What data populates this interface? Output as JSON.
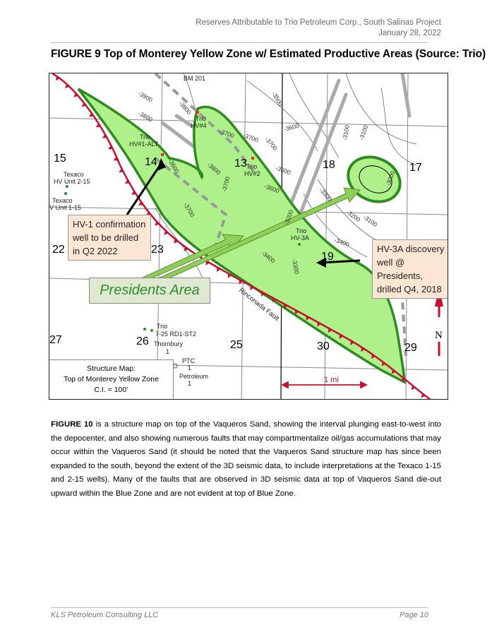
{
  "header": {
    "line1": "Reserves Attributable to Trio Petroleum Corp., South Salinas Project",
    "line2": "January 28, 2022"
  },
  "figure": {
    "title": "FIGURE 9 Top of Monterey Yellow Zone w/ Estimated Productive Areas (Source: Trio)",
    "sections": [
      "15",
      "14",
      "13",
      "18",
      "17",
      "22",
      "23",
      "19",
      "27",
      "26",
      "25",
      "30",
      "29"
    ],
    "wells": {
      "bm201": "BM 201",
      "hv4_a": "Trio",
      "hv4_b": "HV#4",
      "hv1_a": "Trio",
      "hv1_b": "HV#1-ALT",
      "hv2_a": "Trio",
      "hv2_b": "HV#2",
      "hv3a_a": "Trio",
      "hv3a_b": "HV-3A",
      "tex215_a": "Texaco",
      "tex215_b": "HV Unit 2-15",
      "tex115_a": "Texaco",
      "tex115_b": "V Unit 1-15",
      "rd1_a": "Trio",
      "rd1_b": "7-25 RD1-ST2",
      "thorn_a": "Thornbury",
      "thorn_b": "1",
      "ptc_a": "PTC",
      "ptc_b": "1",
      "pet_a": "Petroleum",
      "pet_b": "1"
    },
    "contours": [
      "-3900",
      "-3800",
      "-3800",
      "-3700",
      "-3700",
      "-3700",
      "-3600",
      "-3600",
      "-3500",
      "-3500",
      "-3800",
      "-3700",
      "-3600",
      "-3100",
      "-3100",
      "-3300",
      "-3200",
      "-3100",
      "-3400",
      "-3300",
      "-3400",
      "-3700",
      "-3000",
      "-3200"
    ],
    "fault_label": "Rinconada Fault",
    "callout_hv1": "HV-1 confirmation well to be drilled in Q2 2022",
    "callout_hv3a": "HV-3A discovery well @ Presidents, drilled Q4, 2018",
    "presidents_label": "Presidents Area",
    "legend": {
      "line1": "Structure Map:",
      "line2": "Top of Monterey Yellow Zone",
      "line3": "C.I. = 100’"
    },
    "scale_label": "1 mi",
    "north_label": "N",
    "colors": {
      "productive": "#aef08a",
      "productive_edge": "#2e8b1e",
      "fault": "#c8102e",
      "callout": "#fbe5d3"
    }
  },
  "body": {
    "lead": "FIGURE 10",
    "text": " is a structure map on top of the Vaqueros Sand, showing the interval plunging east-to-west into the depocenter, and also showing numerous faults that may compartmentalize oil/gas accumulations that may occur within the Vaqueros Sand (it should be noted that the Vaqueros Sand structure map has since been expanded to the south, beyond the extent of the 3D seismic data, to include interpretations at the Texaco 1-15 and 2-15 wells). Many of the faults that are observed in 3D seismic data at top of Vaqueros Sand die-out upward within the Blue Zone and are not evident at top of Blue Zone."
  },
  "footer": {
    "left": "KLS Petroleum Consulting LLC",
    "right": "Page 10"
  }
}
